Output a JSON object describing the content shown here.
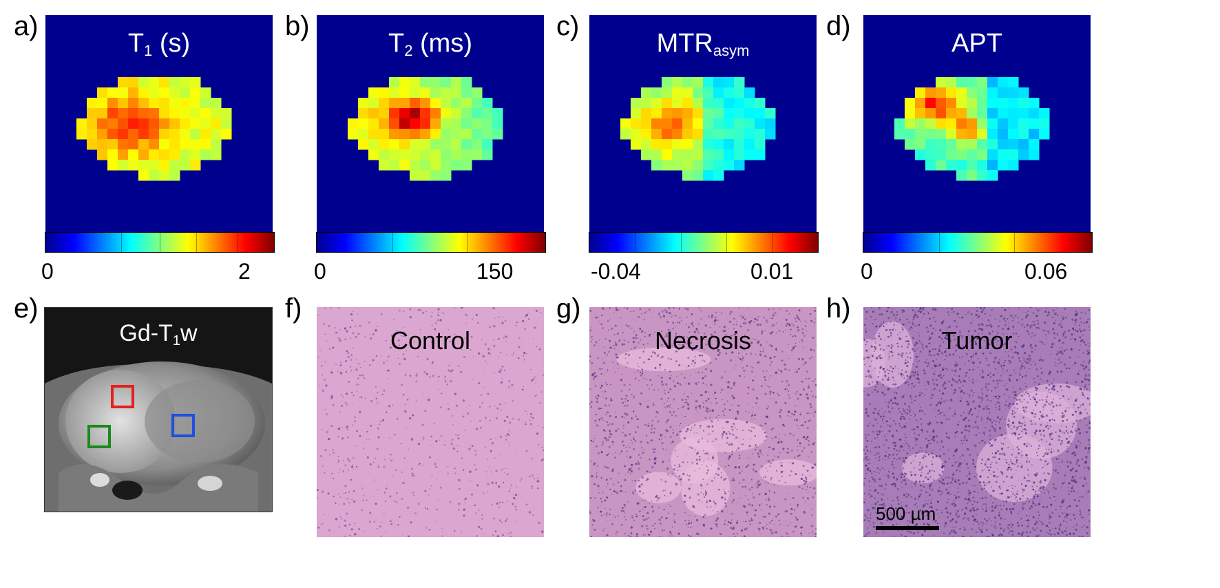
{
  "panel_labels": [
    "a)",
    "b)",
    "c)",
    "d)",
    "e)",
    "f)",
    "g)",
    "h)"
  ],
  "maps": [
    {
      "title": "T",
      "title_sub": "1",
      "title_suffix": " (s)",
      "cbar_min": "0",
      "cbar_max": "2"
    },
    {
      "title": "T",
      "title_sub": "2",
      "title_suffix": " (ms)",
      "cbar_min": "0",
      "cbar_max": "150"
    },
    {
      "title": "MTR",
      "title_sub": "asym",
      "title_suffix": "",
      "cbar_min": "-0.04",
      "cbar_max": "0.01"
    },
    {
      "title": "APT",
      "title_sub": "",
      "title_suffix": "",
      "cbar_min": "0",
      "cbar_max": "0.06"
    }
  ],
  "mri": {
    "title": "Gd-T",
    "title_sub": "1",
    "title_suffix": "w",
    "roi_colors": [
      "#e32020",
      "#1a8a1a",
      "#1f4fe0"
    ]
  },
  "histology": [
    {
      "title": "Control"
    },
    {
      "title": "Necrosis"
    },
    {
      "title": "Tumor",
      "scale_label": "500 µm"
    }
  ],
  "colors": {
    "map_background": "#00008f",
    "histology_pink": "#d9a3cc"
  }
}
